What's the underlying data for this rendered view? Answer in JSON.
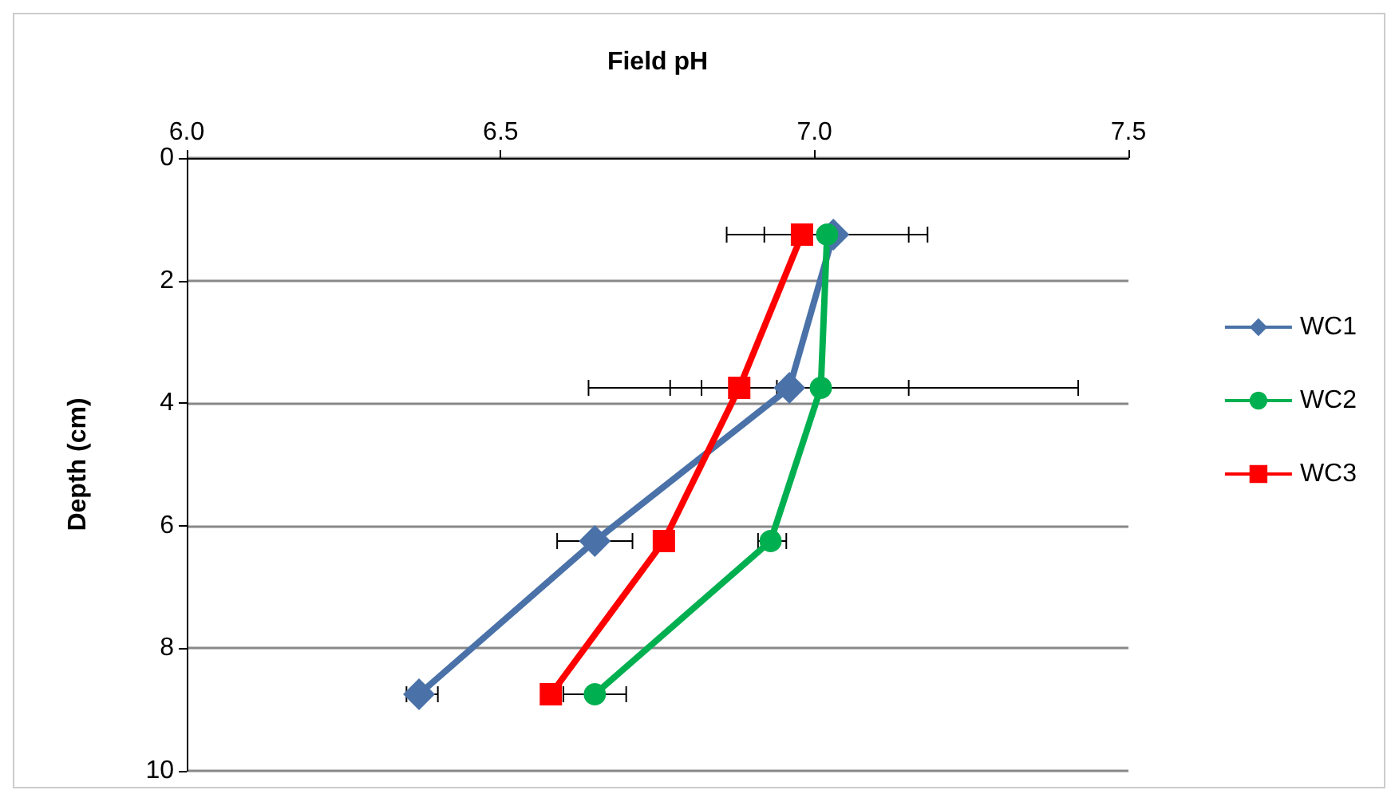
{
  "chart_data": {
    "type": "line",
    "xlabel": "Field pH",
    "ylabel": "Depth (cm)",
    "xlim": [
      6.0,
      7.5
    ],
    "xticks": [
      {
        "value": 6.0,
        "label": "6.0"
      },
      {
        "value": 6.5,
        "label": "6.5"
      },
      {
        "value": 7.0,
        "label": "7.0"
      },
      {
        "value": 7.5,
        "label": "7.5"
      }
    ],
    "ylim": [
      10,
      0
    ],
    "yticks": [
      0,
      2,
      4,
      6,
      8,
      10
    ],
    "grid": "y",
    "legend": "right",
    "series": [
      {
        "name": "WC1",
        "color": "#4a72a8",
        "marker": "diamond",
        "x": [
          7.03,
          6.96,
          6.65,
          6.37
        ],
        "values": [
          1.25,
          3.75,
          6.25,
          8.75
        ],
        "xerrors": [
          [
            6.86,
            7.18
          ],
          [
            6.77,
            7.15
          ],
          [
            6.59,
            6.71
          ],
          [
            6.35,
            6.4
          ]
        ]
      },
      {
        "name": "WC2",
        "color": "#00b050",
        "marker": "circle",
        "x": [
          7.02,
          7.01,
          6.93,
          6.65
        ],
        "values": [
          1.25,
          3.75,
          6.25,
          8.75
        ],
        "xerrors": [
          [
            6.92,
            7.15
          ],
          [
            6.64,
            7.42
          ],
          [
            6.91,
            6.955
          ],
          [
            6.6,
            6.7
          ]
        ]
      },
      {
        "name": "WC3",
        "color": "#ff0000",
        "marker": "square",
        "x": [
          6.98,
          6.88,
          6.76,
          6.58
        ],
        "values": [
          1.25,
          3.75,
          6.25,
          8.75
        ],
        "xerrors": [
          null,
          [
            6.82,
            6.94
          ],
          null,
          null
        ]
      }
    ]
  }
}
